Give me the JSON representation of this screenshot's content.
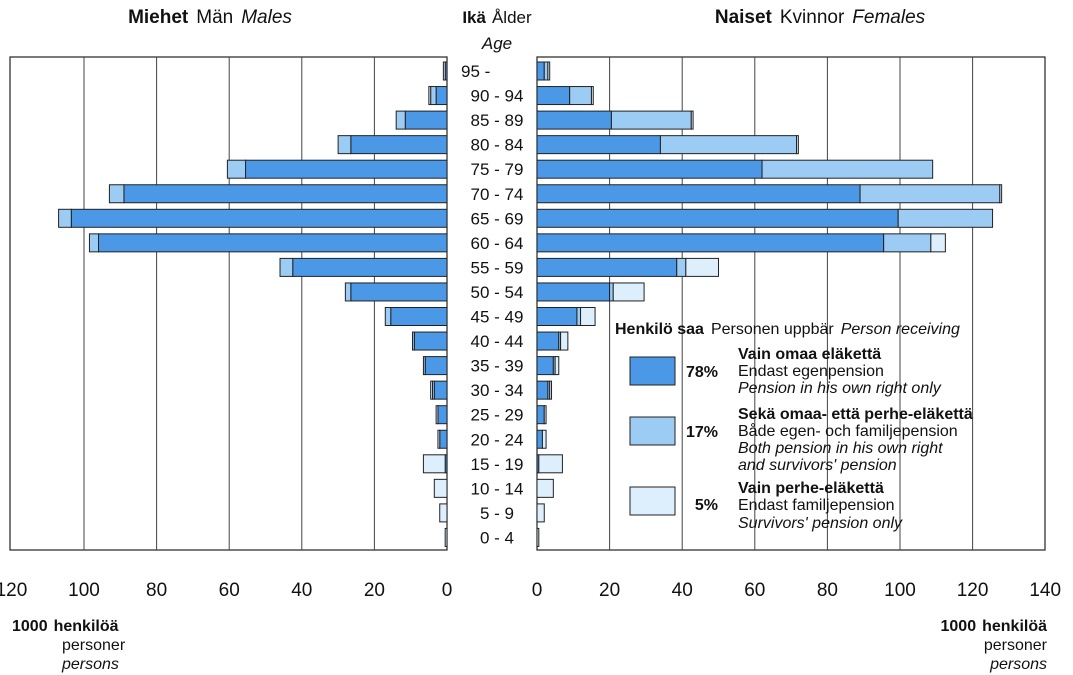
{
  "header": {
    "males": {
      "fi": "Miehet",
      "sv": "Män",
      "en": "Males"
    },
    "age": {
      "fi": "Ikä",
      "sv": "Ålder",
      "en": "Age"
    },
    "females": {
      "fi": "Naiset",
      "sv": "Kvinnor",
      "en": "Females"
    }
  },
  "units": {
    "left": {
      "line1_num": "1000",
      "line1_word": "henkilöä",
      "line2": "personer",
      "line3": "persons"
    },
    "right": {
      "line1_num": "1000",
      "line1_word": "henkilöä",
      "line2": "personer",
      "line3": "persons"
    }
  },
  "legend": {
    "title": {
      "fi": "Henkilö saa",
      "sv": "Personen uppbär",
      "en": "Person receiving"
    },
    "items": [
      {
        "pct": "78%",
        "fi": "Vain omaa eläkettä",
        "sv": "Endast egenpension",
        "en": [
          "Pension in his own right only"
        ],
        "color": "#4a98e6"
      },
      {
        "pct": "17%",
        "fi": "Sekä omaa- että perhe-eläkettä",
        "sv": "Både egen- och familjepension",
        "en": [
          "Both pension in his own right",
          "and survivors' pension"
        ],
        "color": "#9ccbf4"
      },
      {
        "pct": "5%",
        "fi": "Vain perhe-eläkettä",
        "sv": "Endast familjepension",
        "en": [
          "Survivors' pension only"
        ],
        "color": "#ddeefc"
      }
    ]
  },
  "chart_data": {
    "type": "bar",
    "orientation": "horizontal-pyramid",
    "units": "1000 persons",
    "categories": [
      "95 -",
      "90 - 94",
      "85 - 89",
      "80 - 84",
      "75 - 79",
      "70 - 74",
      "65 - 69",
      "60 - 64",
      "55 - 59",
      "50 - 54",
      "45 - 49",
      "40 - 44",
      "35 - 39",
      "30 - 34",
      "25 - 29",
      "20 - 24",
      "15 - 19",
      "10 - 14",
      "5 - 9",
      "0 - 4"
    ],
    "males_axis": {
      "ticks": [
        120,
        100,
        80,
        60,
        40,
        20,
        0
      ],
      "range": [
        0,
        120
      ]
    },
    "females_axis": {
      "ticks": [
        0,
        20,
        40,
        60,
        80,
        100,
        120,
        140
      ],
      "range": [
        0,
        140
      ]
    },
    "grid": true,
    "males": {
      "series": [
        {
          "name": "Vain omaa eläkettä",
          "values": [
            0.5,
            3,
            11.5,
            26.5,
            55.5,
            89,
            103.5,
            96,
            42.5,
            26.5,
            15.5,
            9,
            6,
            3.5,
            2.5,
            2,
            0.5,
            0,
            0,
            0
          ]
        },
        {
          "name": "Sekä omaa- että perhe-eläkettä",
          "values": [
            0,
            1.5,
            2.5,
            3.5,
            5,
            4,
            3.5,
            2.5,
            3.5,
            1.5,
            1.5,
            0.5,
            0.5,
            0.5,
            0,
            0,
            0,
            0,
            0,
            0
          ]
        },
        {
          "name": "Vain perhe-eläkettä",
          "values": [
            0.5,
            0.5,
            0,
            0,
            0,
            0,
            0,
            0,
            0,
            0,
            0,
            0,
            0,
            0.5,
            0.5,
            0.5,
            6,
            3.5,
            2,
            0.5
          ]
        }
      ]
    },
    "females": {
      "series": [
        {
          "name": "Vain omaa eläkettä",
          "values": [
            2,
            9,
            20.5,
            34,
            62,
            89,
            99.5,
            95.5,
            38.5,
            20,
            11,
            6,
            4.5,
            3,
            2,
            1.5,
            0.5,
            0,
            0,
            0
          ]
        },
        {
          "name": "Sekä omaa- että perhe-eläkettä",
          "values": [
            1,
            6,
            22,
            37.5,
            47,
            38.5,
            26,
            13,
            2.5,
            1,
            1,
            0.5,
            0.5,
            0.5,
            0,
            0,
            0,
            0,
            0,
            0
          ]
        },
        {
          "name": "Vain perhe-eläkettä",
          "values": [
            0.5,
            0.5,
            0.5,
            0.5,
            0,
            0.5,
            0,
            4,
            9,
            8.5,
            4,
            2,
            1,
            0.5,
            0.5,
            1,
            6.5,
            4.5,
            2,
            0.5
          ]
        }
      ]
    }
  }
}
